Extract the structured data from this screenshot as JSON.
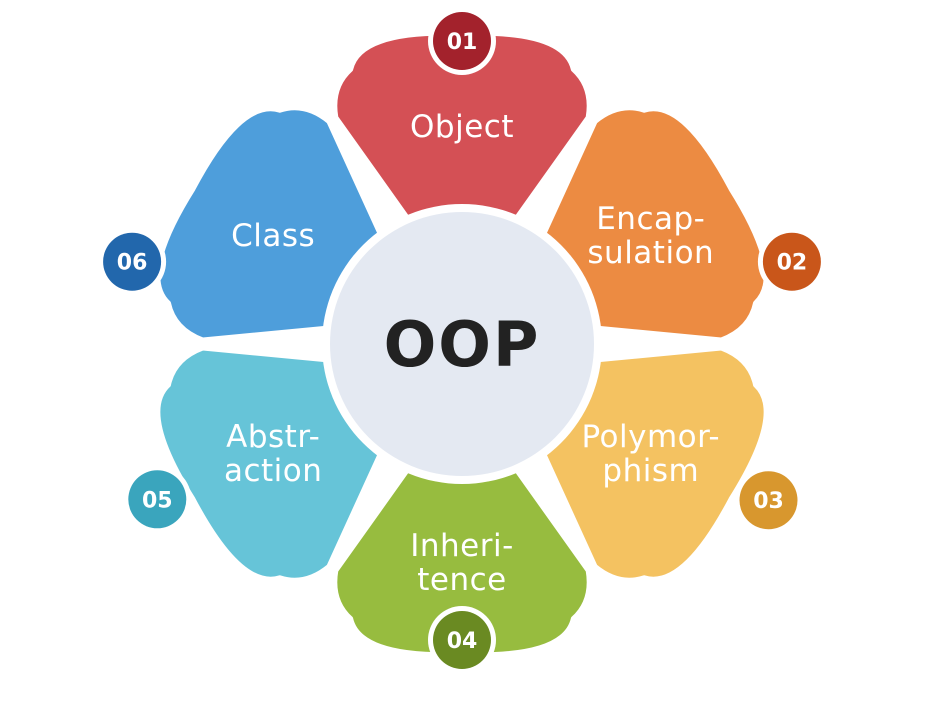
{
  "center": {
    "label": "OOP"
  },
  "segments": [
    {
      "number": "01",
      "label_lines": [
        "Object"
      ],
      "color": "#d45055",
      "badge_color": "#a3222c"
    },
    {
      "number": "02",
      "label_lines": [
        "Encap-",
        "sulation"
      ],
      "color": "#ec8b42",
      "badge_color": "#c9561a"
    },
    {
      "number": "03",
      "label_lines": [
        "Polymor-",
        "phism"
      ],
      "color": "#f4c261",
      "badge_color": "#d8972e"
    },
    {
      "number": "04",
      "label_lines": [
        "Inheri-",
        "tence"
      ],
      "color": "#97bc3f",
      "badge_color": "#6a8a22"
    },
    {
      "number": "05",
      "label_lines": [
        "Abstr-",
        "action"
      ],
      "color": "#66c4d8",
      "badge_color": "#3aa5bd"
    },
    {
      "number": "06",
      "label_lines": [
        "Class"
      ],
      "color": "#4e9edb",
      "badge_color": "#2267ac"
    }
  ]
}
